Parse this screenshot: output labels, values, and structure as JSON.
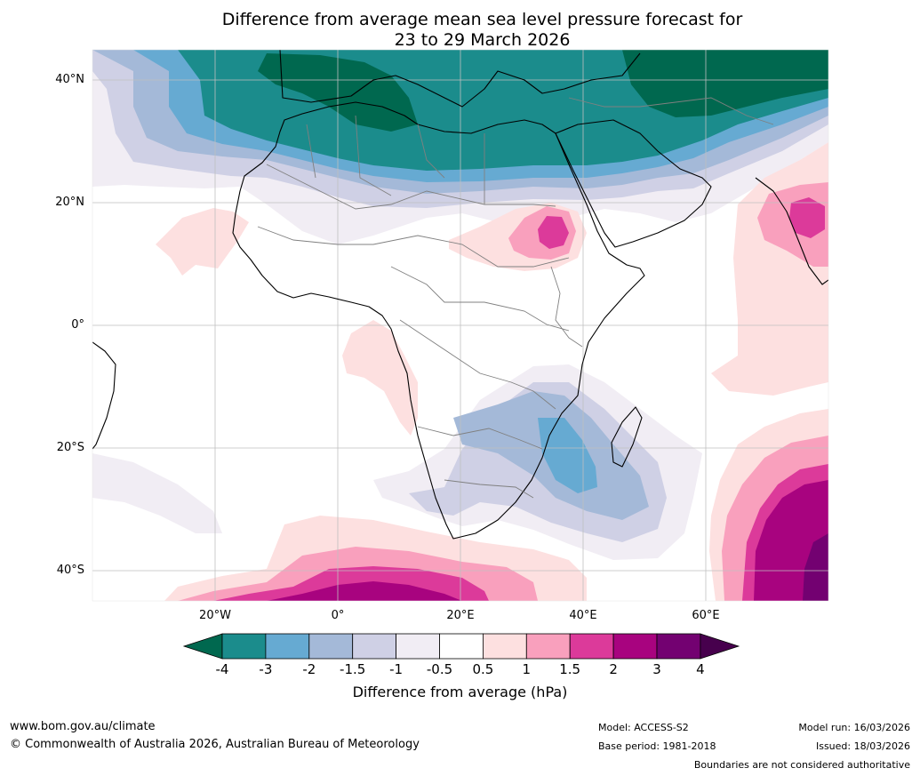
{
  "title": {
    "line1": "Difference from average mean sea level pressure forecast for",
    "line2": "23 to 29 March 2026"
  },
  "map": {
    "latitude_labels": [
      "40°N",
      "20°N",
      "0°",
      "20°S",
      "40°S"
    ],
    "longitude_labels": [
      "20°W",
      "0°",
      "20°E",
      "40°E",
      "60°E"
    ],
    "latitude_values": [
      40,
      20,
      0,
      -20,
      -40
    ],
    "longitude_values": [
      -20,
      0,
      20,
      40,
      60
    ],
    "extent": {
      "lon_min": -40,
      "lon_max": 80,
      "lat_min": -45,
      "lat_max": 45
    }
  },
  "colorbar": {
    "title": "Difference from average (hPa)",
    "tick_labels": [
      "-4",
      "-3",
      "-2",
      "-1.5",
      "-1",
      "-0.5",
      "0.5",
      "1",
      "1.5",
      "2",
      "3",
      "4"
    ],
    "colors": {
      "below_min": "#00684f",
      "bins": [
        "#1b8c8c",
        "#66aad2",
        "#a4b9d8",
        "#cfd0e5",
        "#f1edf4",
        "#ffffff",
        "#fde0e0",
        "#f9a0bd",
        "#dc3a9a",
        "#a8037f",
        "#730171"
      ],
      "above_max": "#47004d"
    }
  },
  "footer": {
    "website": "www.bom.gov.au/climate",
    "copyright": "© Commonwealth of Australia 2026, Australian Bureau of Meteorology",
    "model": "Model: ACCESS-S2",
    "base_period": "Base period: 1981-2018",
    "model_run": "Model run: 16/03/2026",
    "issued": "Issued: 18/03/2026",
    "disclaimer": "Boundaries are not considered authoritative"
  }
}
